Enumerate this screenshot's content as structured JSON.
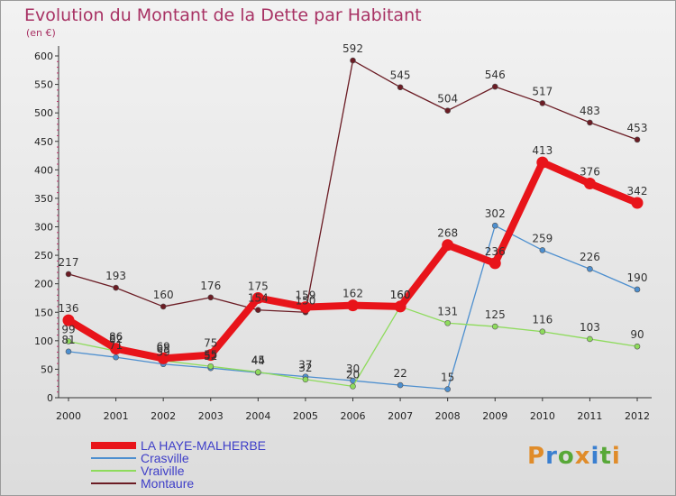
{
  "header": {
    "title": "Evolution du Montant de la Dette par Habitant",
    "subtitle": "(en €)"
  },
  "logo": {
    "text": "Proxiti",
    "letter_colors": [
      "#e08c2a",
      "#3a7fd0",
      "#58a838",
      "#e08c2a",
      "#3a7fd0",
      "#58a838",
      "#e08c2a"
    ]
  },
  "chart_data": {
    "type": "line",
    "title": "Evolution du Montant de la Dette par Habitant",
    "subtitle": "(en €)",
    "xlabel": "",
    "ylabel": "",
    "x": [
      "2000",
      "2001",
      "2002",
      "2003",
      "2004",
      "2005",
      "2006",
      "2007",
      "2008",
      "2009",
      "2010",
      "2011",
      "2012"
    ],
    "ylim": [
      0,
      600
    ],
    "yticks": [
      "0",
      "50",
      "100",
      "150",
      "200",
      "250",
      "300",
      "350",
      "400",
      "450",
      "500",
      "550",
      "600"
    ],
    "grid": false,
    "legend_position": "bottom-left",
    "series": [
      {
        "name": "LA HAYE-MALHERBE",
        "color": "#e8141a",
        "emphasis": true,
        "values": [
          136,
          86,
          69,
          75,
          175,
          159,
          162,
          160,
          268,
          236,
          413,
          376,
          342
        ],
        "labels": [
          "136",
          "86",
          "69",
          "75",
          "175",
          "159",
          "162",
          "160",
          "268",
          "236",
          "413",
          "376",
          "342"
        ]
      },
      {
        "name": "Crasville",
        "color": "#4d8fcf",
        "values": [
          81,
          71,
          59,
          52,
          44,
          37,
          30,
          22,
          15,
          302,
          259,
          226,
          190
        ],
        "labels": [
          "81",
          "71",
          "59",
          "52",
          "44",
          "37",
          "30",
          "22",
          "15",
          "302",
          "259",
          "226",
          "190"
        ]
      },
      {
        "name": "Vraiville",
        "color": "#8edb5c",
        "values": [
          99,
          82,
          65,
          55,
          45,
          32,
          20,
          160,
          131,
          125,
          116,
          103,
          90
        ],
        "labels": [
          "99",
          "82",
          "65",
          "55",
          "45",
          "32",
          "20",
          "160",
          "131",
          "125",
          "116",
          "103",
          "90"
        ]
      },
      {
        "name": "Montaure",
        "color": "#6b1c24",
        "values": [
          217,
          193,
          160,
          176,
          154,
          150,
          592,
          545,
          504,
          546,
          517,
          483,
          453
        ],
        "labels": [
          "217",
          "193",
          "160",
          "176",
          "154",
          "150",
          "592",
          "545",
          "504",
          "546",
          "517",
          "483",
          "453"
        ]
      }
    ]
  }
}
